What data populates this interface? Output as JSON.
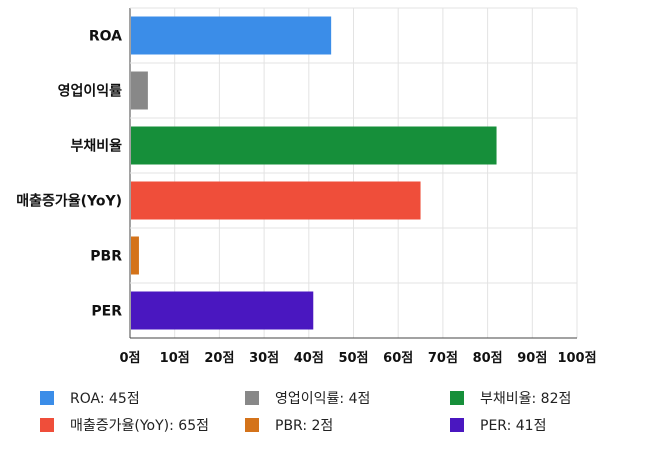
{
  "chart_data": {
    "type": "bar",
    "orientation": "horizontal",
    "categories": [
      "ROA",
      "영업이익률",
      "부채비율",
      "매출증가율(YoY)",
      "PBR",
      "PER"
    ],
    "values": [
      45,
      4,
      82,
      65,
      2,
      41
    ],
    "colors": [
      "#3b8de8",
      "#888888",
      "#168f3a",
      "#ef4e3a",
      "#d4731a",
      "#4a17c0"
    ],
    "xlim": [
      0,
      100
    ],
    "xticks": [
      "0점",
      "10점",
      "20점",
      "30점",
      "40점",
      "50점",
      "60점",
      "70점",
      "80점",
      "90점",
      "100점"
    ],
    "grid": true,
    "legend_position": "bottom",
    "legend": [
      {
        "label": "ROA: 45점",
        "color": "#3b8de8"
      },
      {
        "label": "영업이익률: 4점",
        "color": "#888888"
      },
      {
        "label": "부채비율: 82점",
        "color": "#168f3a"
      },
      {
        "label": "매출증가율(YoY): 65점",
        "color": "#ef4e3a"
      },
      {
        "label": "PBR: 2점",
        "color": "#d4731a"
      },
      {
        "label": "PER: 41점",
        "color": "#4a17c0"
      }
    ]
  }
}
